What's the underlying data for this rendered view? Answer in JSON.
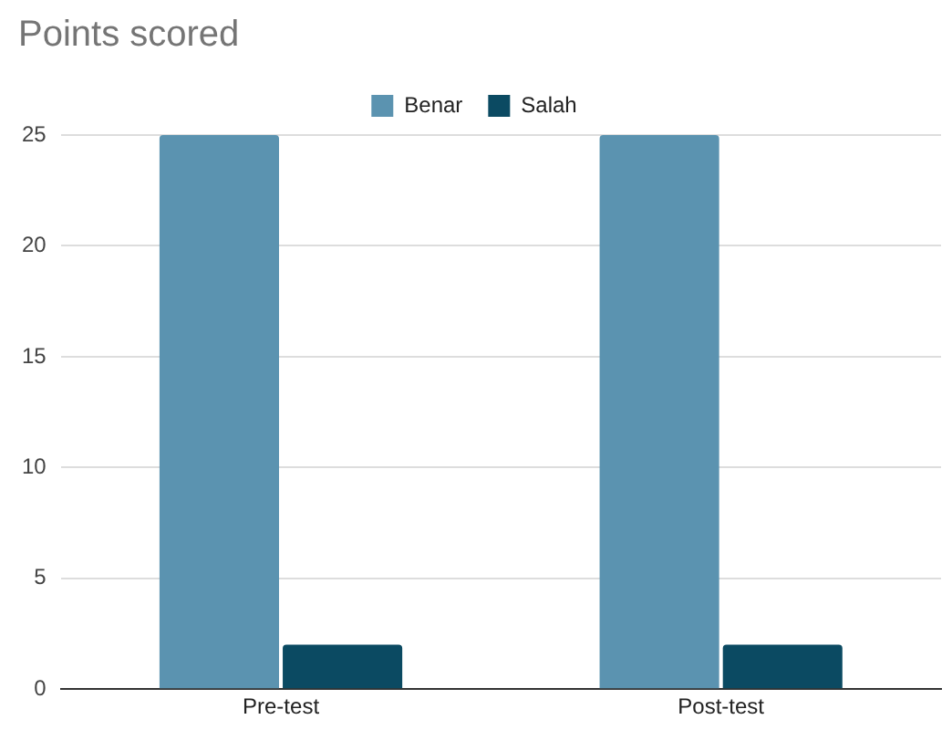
{
  "chart_data": {
    "type": "bar",
    "title": "Points scored",
    "categories": [
      "Pre-test",
      "Post-test"
    ],
    "series": [
      {
        "name": "Benar",
        "color": "#5b93b0",
        "values": [
          25,
          25
        ]
      },
      {
        "name": "Salah",
        "color": "#0b4a62",
        "values": [
          2,
          2
        ]
      }
    ],
    "ylim": [
      0,
      25
    ],
    "yticks": [
      0,
      5,
      10,
      15,
      20,
      25
    ],
    "grid": "y",
    "legend": "top"
  }
}
